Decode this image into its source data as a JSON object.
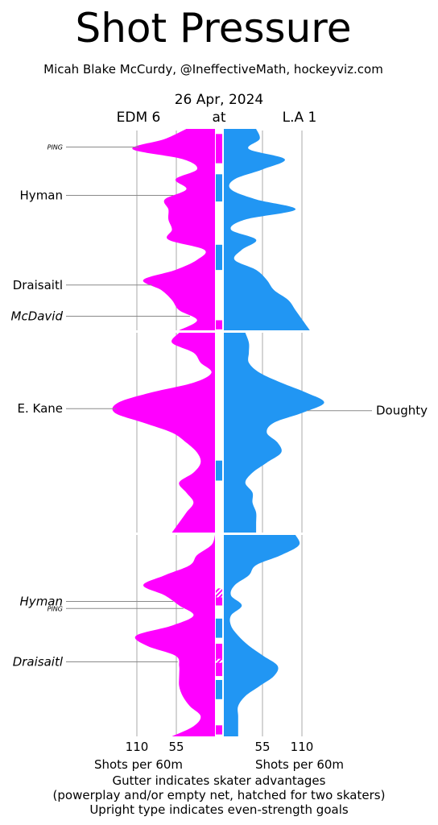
{
  "chart_data": {
    "type": "area",
    "title": "Shot Pressure",
    "subtitle": "Micah Blake McCurdy, @IneffectiveMath, hockeyviz.com",
    "date": "26 Apr, 2024",
    "teams": {
      "home": {
        "label": "EDM 6",
        "color": "#ff00ff"
      },
      "at": "at",
      "away": {
        "label": "L.A 1",
        "color": "#2196f3"
      }
    },
    "x_ticks": {
      "left": [
        "110",
        "55"
      ],
      "right": [
        "55",
        "110"
      ],
      "values": [
        110,
        55
      ]
    },
    "xlabel_left": "Shots per 60m",
    "xlabel_right": "Shots per 60m",
    "notes": [
      "Gutter indicates skater advantages",
      "(powerplay and/or empty net, hatched for two skaters)",
      "Upright type indicates even-strength goals"
    ],
    "periods": [
      {
        "period": 1,
        "edm": [
          [
            0,
            40
          ],
          [
            1,
            70
          ],
          [
            2,
            115
          ],
          [
            3,
            45
          ],
          [
            4,
            25
          ],
          [
            5,
            55
          ],
          [
            6,
            40
          ],
          [
            7,
            70
          ],
          [
            8,
            65
          ],
          [
            9,
            65
          ],
          [
            10,
            60
          ],
          [
            11,
            65
          ],
          [
            12,
            15
          ],
          [
            13,
            25
          ],
          [
            14,
            55
          ],
          [
            15,
            100
          ],
          [
            16,
            75
          ],
          [
            17,
            60
          ],
          [
            18,
            50
          ],
          [
            19,
            25
          ],
          [
            20,
            50
          ]
        ],
        "lak": [
          [
            0,
            45
          ],
          [
            1,
            50
          ],
          [
            2,
            35
          ],
          [
            3,
            85
          ],
          [
            4,
            55
          ],
          [
            5,
            15
          ],
          [
            6,
            10
          ],
          [
            7,
            45
          ],
          [
            8,
            100
          ],
          [
            9,
            30
          ],
          [
            10,
            10
          ],
          [
            11,
            45
          ],
          [
            12,
            25
          ],
          [
            13,
            15
          ],
          [
            14,
            45
          ],
          [
            15,
            60
          ],
          [
            16,
            70
          ],
          [
            17,
            90
          ],
          [
            18,
            100
          ],
          [
            19,
            110
          ],
          [
            20,
            120
          ]
        ],
        "gutter": [
          {
            "team": "edm",
            "start": 0.5,
            "end": 3.4,
            "type": "pp"
          },
          {
            "team": "lak",
            "start": 4.5,
            "end": 7.2,
            "type": "pp"
          },
          {
            "team": "lak",
            "start": 11.5,
            "end": 14.0,
            "type": "pp"
          },
          {
            "team": "edm",
            "start": 19.0,
            "end": 19.9,
            "type": "pp"
          }
        ],
        "goals": [
          {
            "minute": 1.8,
            "team": "edm",
            "label": "PING",
            "style": "ping"
          },
          {
            "minute": 6.6,
            "team": "edm",
            "label": "Hyman",
            "style": "even"
          },
          {
            "minute": 15.5,
            "team": "edm",
            "label": "Draisaitl",
            "style": "even"
          },
          {
            "minute": 18.6,
            "team": "edm",
            "label": "McDavid",
            "style": "special"
          }
        ]
      },
      {
        "period": 2,
        "edm": [
          [
            0,
            50
          ],
          [
            1,
            60
          ],
          [
            2,
            30
          ],
          [
            3,
            20
          ],
          [
            4,
            5
          ],
          [
            5,
            30
          ],
          [
            6,
            90
          ],
          [
            7,
            135
          ],
          [
            8,
            140
          ],
          [
            9,
            100
          ],
          [
            10,
            60
          ],
          [
            11,
            40
          ],
          [
            12,
            25
          ],
          [
            13,
            20
          ],
          [
            14,
            30
          ],
          [
            15,
            50
          ],
          [
            16,
            40
          ],
          [
            17,
            30
          ],
          [
            18,
            40
          ],
          [
            19,
            50
          ],
          [
            20,
            60
          ]
        ],
        "lak": [
          [
            0,
            30
          ],
          [
            1,
            35
          ],
          [
            2,
            35
          ],
          [
            3,
            35
          ],
          [
            4,
            50
          ],
          [
            5,
            80
          ],
          [
            6,
            115
          ],
          [
            7,
            140
          ],
          [
            8,
            110
          ],
          [
            9,
            70
          ],
          [
            10,
            60
          ],
          [
            11,
            75
          ],
          [
            12,
            80
          ],
          [
            13,
            60
          ],
          [
            14,
            40
          ],
          [
            15,
            30
          ],
          [
            16,
            40
          ],
          [
            17,
            40
          ],
          [
            18,
            45
          ],
          [
            19,
            45
          ],
          [
            20,
            45
          ]
        ],
        "gutter": [
          {
            "team": "lak",
            "start": 12.8,
            "end": 14.8,
            "type": "pp"
          }
        ],
        "goals": [
          {
            "minute": 7.8,
            "team": "lak",
            "label": "Doughty",
            "style": "even"
          },
          {
            "minute": 7.6,
            "team": "edm",
            "label": "E. Kane",
            "style": "even"
          }
        ]
      },
      {
        "period": 3,
        "edm": [
          [
            0,
            0
          ],
          [
            1,
            5
          ],
          [
            2,
            25
          ],
          [
            3,
            35
          ],
          [
            4,
            70
          ],
          [
            5,
            100
          ],
          [
            6,
            70
          ],
          [
            7,
            50
          ],
          [
            8,
            30
          ],
          [
            9,
            60
          ],
          [
            10,
            110
          ],
          [
            11,
            95
          ],
          [
            12,
            55
          ],
          [
            13,
            50
          ],
          [
            14,
            50
          ],
          [
            15,
            50
          ],
          [
            16,
            45
          ],
          [
            17,
            35
          ],
          [
            18,
            20
          ],
          [
            19,
            30
          ],
          [
            20,
            60
          ]
        ],
        "lak": [
          [
            0,
            100
          ],
          [
            1,
            105
          ],
          [
            2,
            80
          ],
          [
            3,
            45
          ],
          [
            4,
            35
          ],
          [
            5,
            15
          ],
          [
            6,
            10
          ],
          [
            7,
            25
          ],
          [
            8,
            10
          ],
          [
            9,
            10
          ],
          [
            10,
            20
          ],
          [
            11,
            35
          ],
          [
            12,
            55
          ],
          [
            13,
            75
          ],
          [
            14,
            70
          ],
          [
            15,
            50
          ],
          [
            16,
            30
          ],
          [
            17,
            20
          ],
          [
            18,
            20
          ],
          [
            19,
            20
          ],
          [
            20,
            20
          ]
        ],
        "gutter": [
          {
            "team": "edm",
            "start": 5.3,
            "end": 6.2,
            "type": "pp5v3"
          },
          {
            "team": "edm",
            "start": 6.2,
            "end": 7.0,
            "type": "pp"
          },
          {
            "team": "lak",
            "start": 8.3,
            "end": 10.2,
            "type": "pp"
          },
          {
            "team": "edm",
            "start": 10.8,
            "end": 12.3,
            "type": "pp"
          },
          {
            "team": "edm",
            "start": 12.3,
            "end": 12.7,
            "type": "pp5v3"
          },
          {
            "team": "edm",
            "start": 12.7,
            "end": 14.0,
            "type": "pp"
          },
          {
            "team": "lak",
            "start": 14.4,
            "end": 16.3,
            "type": "pp"
          },
          {
            "team": "edm",
            "start": 18.9,
            "end": 19.8,
            "type": "pp"
          }
        ],
        "goals": [
          {
            "minute": 6.6,
            "team": "edm",
            "label": "Hyman",
            "style": "special"
          },
          {
            "minute": 7.3,
            "team": "edm",
            "label": "PING",
            "style": "ping"
          },
          {
            "minute": 12.6,
            "team": "edm",
            "label": "Draisaitl",
            "style": "special"
          }
        ]
      }
    ]
  }
}
